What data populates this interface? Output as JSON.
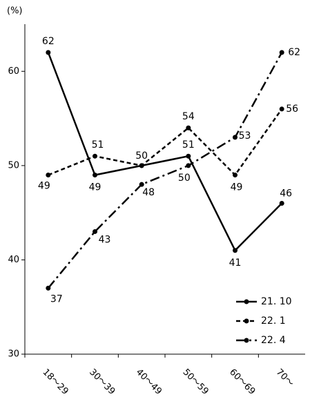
{
  "chart_data": {
    "type": "line",
    "y_unit": "(%)",
    "categories": [
      "18～29",
      "30～39",
      "40～49",
      "50～59",
      "60～69",
      "70～"
    ],
    "series": [
      {
        "name": "21. 10",
        "color": "#000000",
        "dash": "solid",
        "values": [
          62,
          49,
          50,
          51,
          41,
          46
        ]
      },
      {
        "name": "22. 1",
        "color": "#000000",
        "dash": "dashed",
        "values": [
          49,
          51,
          50,
          54,
          49,
          56
        ]
      },
      {
        "name": "22. 4",
        "color": "#000000",
        "dash": "dashdot",
        "values": [
          37,
          43,
          48,
          50,
          53,
          62
        ]
      }
    ],
    "ylim": [
      30,
      65
    ],
    "yticks": [
      30,
      40,
      50,
      60
    ],
    "legend": "lower right"
  }
}
